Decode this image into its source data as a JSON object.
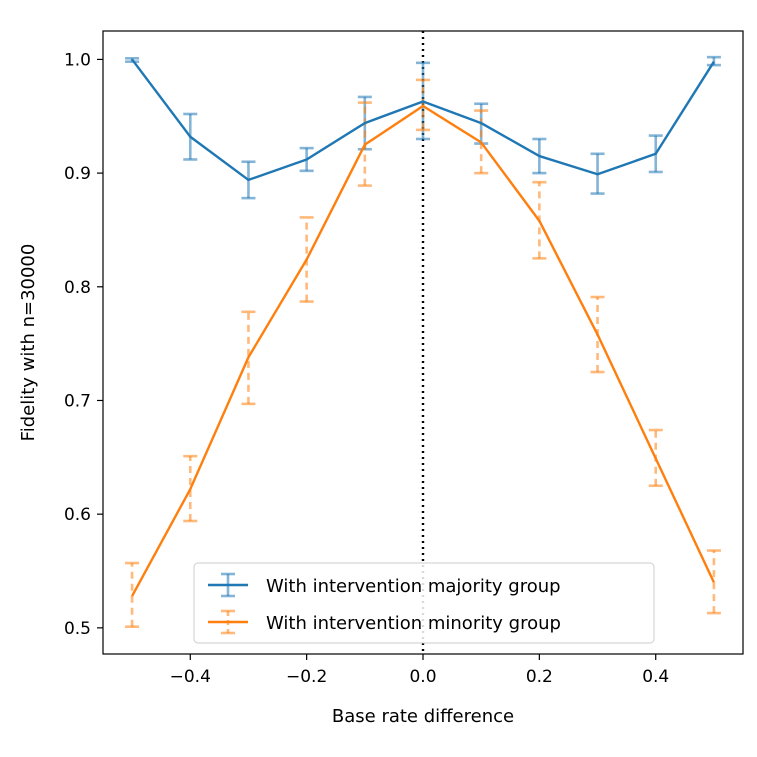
{
  "chart_data": {
    "type": "line",
    "xlabel": "Base rate difference",
    "ylabel": "Fidelity with n=30000",
    "xlim": [
      -0.55,
      0.55
    ],
    "ylim": [
      0.477,
      1.025
    ],
    "x_ticks": [
      -0.4,
      -0.2,
      0.0,
      0.2,
      0.4
    ],
    "x_tick_labels": [
      "−0.4",
      "−0.2",
      "0.0",
      "0.2",
      "0.4"
    ],
    "y_ticks": [
      0.5,
      0.6,
      0.7,
      0.8,
      0.9,
      1.0
    ],
    "y_tick_labels": [
      "0.5",
      "0.6",
      "0.7",
      "0.8",
      "0.9",
      "1.0"
    ],
    "vline": {
      "x": 0.0,
      "style": "dotted",
      "color": "#000000"
    },
    "legend": {
      "placement": "bottom-center"
    },
    "x": [
      -0.5,
      -0.4,
      -0.3,
      -0.2,
      -0.1,
      0.0,
      0.1,
      0.2,
      0.3,
      0.4,
      0.5
    ],
    "series": [
      {
        "name": "With intervention majority group",
        "color": "#1f77b4",
        "errorbar_style": "solid",
        "values": [
          1.0,
          0.932,
          0.894,
          0.912,
          0.944,
          0.963,
          0.944,
          0.915,
          0.899,
          0.917,
          0.998
        ],
        "err_low": [
          0.998,
          0.912,
          0.878,
          0.902,
          0.921,
          0.93,
          0.926,
          0.9,
          0.882,
          0.901,
          0.995
        ],
        "err_high": [
          1.001,
          0.952,
          0.91,
          0.922,
          0.967,
          0.997,
          0.961,
          0.93,
          0.917,
          0.933,
          1.002
        ]
      },
      {
        "name": "With intervention minority group",
        "color": "#ff7f0e",
        "errorbar_style": "dashed",
        "values": [
          0.528,
          0.622,
          0.738,
          0.824,
          0.925,
          0.959,
          0.927,
          0.858,
          0.758,
          0.649,
          0.54
        ],
        "err_low": [
          0.501,
          0.594,
          0.697,
          0.787,
          0.889,
          0.938,
          0.9,
          0.825,
          0.725,
          0.625,
          0.513
        ],
        "err_high": [
          0.557,
          0.651,
          0.778,
          0.861,
          0.962,
          0.982,
          0.955,
          0.892,
          0.791,
          0.674,
          0.568
        ]
      }
    ]
  }
}
